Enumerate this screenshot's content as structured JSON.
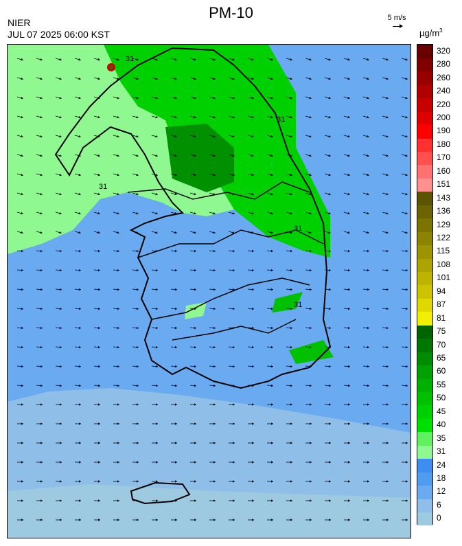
{
  "header": {
    "title": "PM-10",
    "agency": "NIER",
    "datetime": "JUL 07 2025 06:00 KST",
    "wind_scale_label": "5 m/s",
    "unit_base": "µg/m",
    "unit_exp": "3"
  },
  "legend": {
    "bins": [
      {
        "label": "0",
        "color": "#9ecae1"
      },
      {
        "label": "6",
        "color": "#8fbfe8"
      },
      {
        "label": "12",
        "color": "#6aaaf0"
      },
      {
        "label": "18",
        "color": "#4f9cf0"
      },
      {
        "label": "24",
        "color": "#3d8ef0"
      },
      {
        "label": "31",
        "color": "#90f890"
      },
      {
        "label": "35",
        "color": "#60f060"
      },
      {
        "label": "40",
        "color": "#00e000"
      },
      {
        "label": "45",
        "color": "#00d000"
      },
      {
        "label": "50",
        "color": "#00c000"
      },
      {
        "label": "55",
        "color": "#00b000"
      },
      {
        "label": "60",
        "color": "#00a000"
      },
      {
        "label": "65",
        "color": "#008c00"
      },
      {
        "label": "70",
        "color": "#007800"
      },
      {
        "label": "75",
        "color": "#006400"
      },
      {
        "label": "81",
        "color": "#f0f000"
      },
      {
        "label": "87",
        "color": "#e0d800"
      },
      {
        "label": "94",
        "color": "#ccc400"
      },
      {
        "label": "101",
        "color": "#bcb400"
      },
      {
        "label": "108",
        "color": "#aca400"
      },
      {
        "label": "115",
        "color": "#9c9400"
      },
      {
        "label": "122",
        "color": "#8c8400"
      },
      {
        "label": "129",
        "color": "#7c7400"
      },
      {
        "label": "136",
        "color": "#6c6400"
      },
      {
        "label": "143",
        "color": "#5c5400"
      },
      {
        "label": "151",
        "color": "#ff9090"
      },
      {
        "label": "160",
        "color": "#ff7070"
      },
      {
        "label": "170",
        "color": "#ff5050"
      },
      {
        "label": "180",
        "color": "#ff3030"
      },
      {
        "label": "190",
        "color": "#ff0000"
      },
      {
        "label": "200",
        "color": "#e00000"
      },
      {
        "label": "220",
        "color": "#c80000"
      },
      {
        "label": "240",
        "color": "#b00000"
      },
      {
        "label": "260",
        "color": "#980000"
      },
      {
        "label": "280",
        "color": "#800000"
      },
      {
        "label": "320",
        "color": "#680000"
      }
    ]
  },
  "map": {
    "contour_labels": [
      "31",
      "31",
      "31",
      "31",
      "31"
    ]
  }
}
